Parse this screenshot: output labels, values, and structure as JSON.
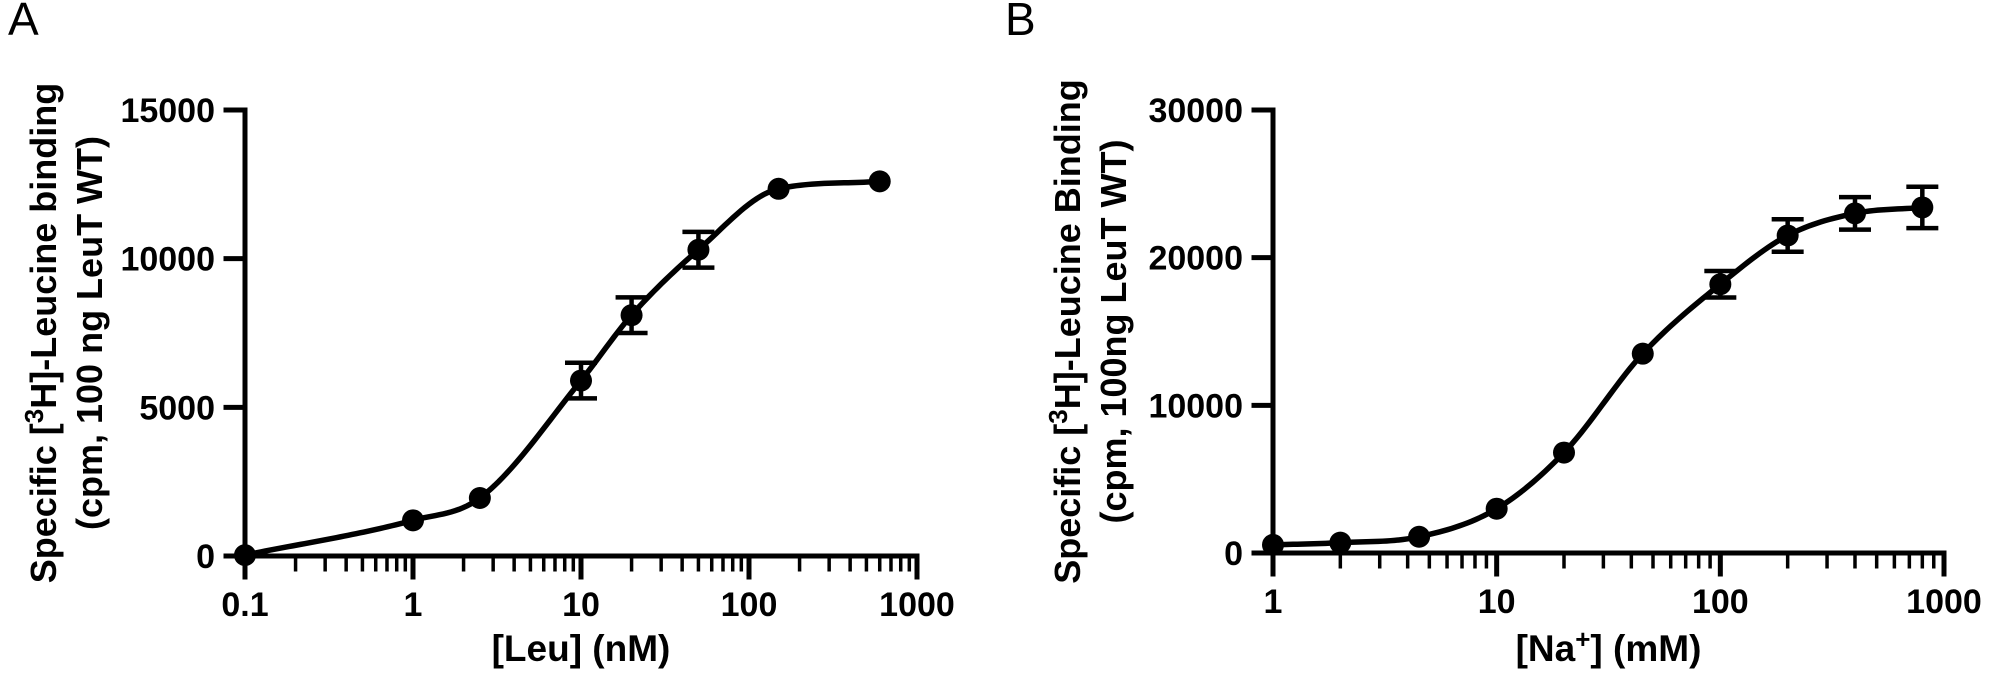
{
  "figure": {
    "background": "#ffffff",
    "ink": "#000000",
    "description": "Saturation binding curves for LeuT WT"
  },
  "chart_data": [
    {
      "type": "scatter",
      "curve": "sigmoidal-fit-line",
      "panel": "A",
      "xscale": "log",
      "xlim": [
        0.1,
        1000
      ],
      "ylim": [
        0,
        15000
      ],
      "grid": "off",
      "legend": "none",
      "xlabel_segments": [
        {
          "t": "[Leu] (nM)",
          "sup": false
        }
      ],
      "ylabel_lines": [
        [
          {
            "t": "Specific [",
            "sup": false
          },
          {
            "t": "3",
            "sup": true
          },
          {
            "t": "H]-Leucine binding",
            "sup": false
          }
        ],
        [
          {
            "t": "(cpm, 100 ng LeuT WT)",
            "sup": false
          }
        ]
      ],
      "xticks": [
        {
          "v": 0.1,
          "label": "0.1"
        },
        {
          "v": 1,
          "label": "1"
        },
        {
          "v": 10,
          "label": "10"
        },
        {
          "v": 100,
          "label": "100"
        },
        {
          "v": 1000,
          "label": "1000"
        }
      ],
      "yticks": [
        {
          "v": 0,
          "label": "0"
        },
        {
          "v": 5000,
          "label": "5000"
        },
        {
          "v": 10000,
          "label": "10000"
        },
        {
          "v": 15000,
          "label": "15000"
        }
      ],
      "points": [
        {
          "x": 0.1,
          "y": 30,
          "err": 0
        },
        {
          "x": 1,
          "y": 1200,
          "err": 0
        },
        {
          "x": 2.5,
          "y": 1950,
          "err": 0
        },
        {
          "x": 10,
          "y": 5900,
          "err": 600
        },
        {
          "x": 20,
          "y": 8100,
          "err": 600
        },
        {
          "x": 50,
          "y": 10300,
          "err": 600
        },
        {
          "x": 150,
          "y": 12350,
          "err": 0
        },
        {
          "x": 600,
          "y": 12600,
          "err": 0
        }
      ]
    },
    {
      "type": "scatter",
      "curve": "sigmoidal-fit-line",
      "panel": "B",
      "xscale": "log",
      "xlim": [
        1,
        1000
      ],
      "ylim": [
        0,
        30000
      ],
      "grid": "off",
      "legend": "none",
      "xlabel_segments": [
        {
          "t": "[Na",
          "sup": false
        },
        {
          "t": "+",
          "sup": true
        },
        {
          "t": "] (mM)",
          "sup": false
        }
      ],
      "ylabel_lines": [
        [
          {
            "t": "Specific [",
            "sup": false
          },
          {
            "t": "3",
            "sup": true
          },
          {
            "t": "H]-Leucine Binding",
            "sup": false
          }
        ],
        [
          {
            "t": "(cpm, 100ng LeuT WT)",
            "sup": false
          }
        ]
      ],
      "xticks": [
        {
          "v": 1,
          "label": "1"
        },
        {
          "v": 10,
          "label": "10"
        },
        {
          "v": 100,
          "label": "100"
        },
        {
          "v": 1000,
          "label": "1000"
        }
      ],
      "yticks": [
        {
          "v": 0,
          "label": "0"
        },
        {
          "v": 10000,
          "label": "10000"
        },
        {
          "v": 20000,
          "label": "20000"
        },
        {
          "v": 30000,
          "label": "30000"
        }
      ],
      "points": [
        {
          "x": 1,
          "y": 550,
          "err": 0
        },
        {
          "x": 2,
          "y": 700,
          "err": 0
        },
        {
          "x": 4.5,
          "y": 1100,
          "err": 0
        },
        {
          "x": 10,
          "y": 3000,
          "err": 0
        },
        {
          "x": 20,
          "y": 6800,
          "err": 0
        },
        {
          "x": 45,
          "y": 13500,
          "err": 0
        },
        {
          "x": 100,
          "y": 18200,
          "err": 900
        },
        {
          "x": 200,
          "y": 21500,
          "err": 1100
        },
        {
          "x": 400,
          "y": 23000,
          "err": 1100
        },
        {
          "x": 800,
          "y": 23400,
          "err": 1400
        }
      ]
    }
  ]
}
